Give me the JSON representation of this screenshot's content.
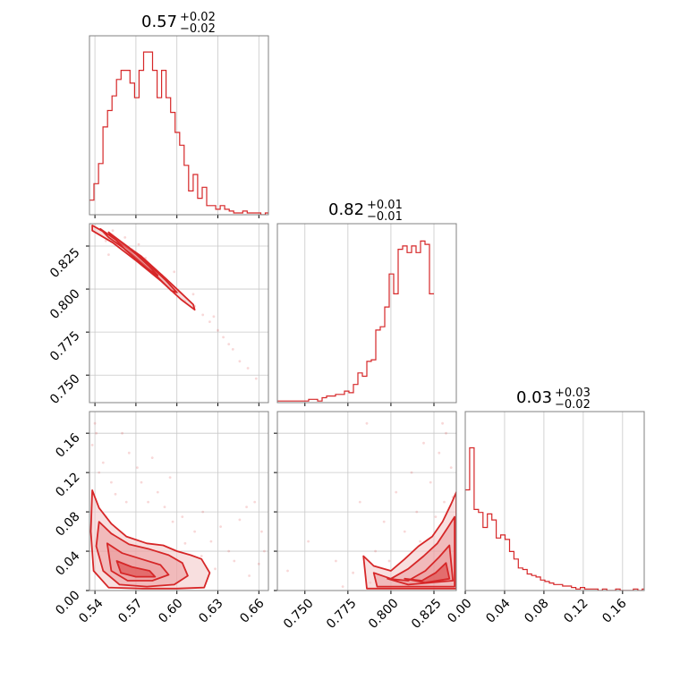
{
  "colors": {
    "accent": "#d62728",
    "grid": "#c8c8c8",
    "frame": "#808080",
    "fill_light": "#f3c4c4",
    "fill_mid": "#e98f90"
  },
  "chart_data": {
    "type": "corner",
    "panels": [
      {
        "id": "hist-p1",
        "type": "histogram",
        "title": {
          "median": "0.57",
          "plus": "+0.02",
          "minus": "−0.02"
        },
        "xlim": [
          0.536,
          0.667
        ],
        "xgrid": [
          0.54,
          0.57,
          0.6,
          0.63,
          0.66
        ],
        "bin_edges_start": 0.536,
        "bin_width": 0.0033,
        "counts": [
          8,
          17,
          28,
          48,
          57,
          65,
          74,
          79,
          79,
          72,
          64,
          79,
          89,
          89,
          79,
          64,
          79,
          64,
          56,
          45,
          38,
          27,
          13,
          22,
          9,
          15,
          5,
          5,
          3,
          5,
          3,
          2,
          1,
          1,
          2,
          1,
          1,
          1,
          0,
          1
        ],
        "ymax": 92
      },
      {
        "id": "hist-p2",
        "type": "histogram",
        "title": {
          "median": "0.82",
          "plus": "+0.01",
          "minus": "−0.01"
        },
        "xlim": [
          0.734,
          0.838
        ],
        "xgrid": [
          0.75,
          0.775,
          0.8,
          0.825
        ],
        "bin_edges_start": 0.734,
        "bin_width": 0.0026,
        "counts": [
          1,
          1,
          1,
          1,
          1,
          1,
          1,
          2,
          2,
          1,
          3,
          4,
          4,
          5,
          5,
          7,
          6,
          11,
          18,
          16,
          25,
          26,
          44,
          46,
          58,
          78,
          66,
          93,
          95,
          91,
          95,
          91,
          98,
          96,
          66
        ],
        "ymax": 102
      },
      {
        "id": "hist-p3",
        "type": "histogram",
        "title": {
          "median": "0.03",
          "plus": "+0.03",
          "minus": "−0.02"
        },
        "xlim": [
          0.0,
          0.182
        ],
        "xgrid": [
          0.0,
          0.04,
          0.08,
          0.12,
          0.16
        ],
        "bin_edges_start": 0.0,
        "bin_width": 0.0045,
        "counts": [
          67,
          95,
          54,
          52,
          42,
          51,
          47,
          35,
          37,
          34,
          26,
          21,
          15,
          14,
          11,
          10,
          9,
          7,
          6,
          5,
          4,
          4,
          3,
          3,
          2,
          1,
          2,
          1,
          1,
          1,
          0,
          1,
          0,
          0,
          1,
          0,
          0,
          0,
          1,
          0,
          1
        ],
        "ymax": 112
      },
      {
        "id": "scatter-p1-p2",
        "type": "contour_scatter",
        "xlim": [
          0.536,
          0.667
        ],
        "ylim": [
          0.734,
          0.838
        ],
        "xgrid": [
          0.54,
          0.57,
          0.6,
          0.63,
          0.66
        ],
        "ygrid": [
          0.75,
          0.775,
          0.8,
          0.825
        ],
        "points": [
          [
            0.548,
            0.828
          ],
          [
            0.556,
            0.826
          ],
          [
            0.562,
            0.83
          ],
          [
            0.567,
            0.823
          ],
          [
            0.571,
            0.818
          ],
          [
            0.577,
            0.818
          ],
          [
            0.583,
            0.812
          ],
          [
            0.589,
            0.808
          ],
          [
            0.595,
            0.802
          ],
          [
            0.601,
            0.798
          ],
          [
            0.606,
            0.793
          ],
          [
            0.613,
            0.79
          ],
          [
            0.619,
            0.785
          ],
          [
            0.624,
            0.781
          ],
          [
            0.63,
            0.776
          ],
          [
            0.634,
            0.772
          ],
          [
            0.641,
            0.765
          ],
          [
            0.646,
            0.758
          ],
          [
            0.652,
            0.754
          ],
          [
            0.658,
            0.748
          ],
          [
            0.553,
            0.834
          ],
          [
            0.55,
            0.82
          ],
          [
            0.572,
            0.826
          ],
          [
            0.598,
            0.81
          ],
          [
            0.612,
            0.797
          ],
          [
            0.627,
            0.784
          ],
          [
            0.638,
            0.768
          ]
        ],
        "contours": [
          [
            [
              0.538,
              0.837
            ],
            [
              0.556,
              0.829
            ],
            [
              0.574,
              0.819
            ],
            [
              0.592,
              0.806
            ],
            [
              0.604,
              0.797
            ],
            [
              0.612,
              0.791
            ],
            [
              0.613,
              0.788
            ],
            [
              0.603,
              0.794
            ],
            [
              0.588,
              0.805
            ],
            [
              0.571,
              0.816
            ],
            [
              0.553,
              0.827
            ],
            [
              0.538,
              0.834
            ]
          ],
          [
            [
              0.544,
              0.835
            ],
            [
              0.56,
              0.826
            ],
            [
              0.576,
              0.817
            ],
            [
              0.592,
              0.805
            ],
            [
              0.6,
              0.798
            ],
            [
              0.596,
              0.799
            ],
            [
              0.582,
              0.81
            ],
            [
              0.566,
              0.821
            ],
            [
              0.55,
              0.83
            ]
          ],
          [
            [
              0.55,
              0.833
            ],
            [
              0.565,
              0.824
            ],
            [
              0.58,
              0.813
            ],
            [
              0.586,
              0.808
            ],
            [
              0.578,
              0.812
            ],
            [
              0.562,
              0.823
            ]
          ]
        ]
      },
      {
        "id": "scatter-p1-p3",
        "type": "contour_scatter",
        "xlim": [
          0.536,
          0.667
        ],
        "ylim": [
          0.0,
          0.182
        ],
        "xgrid": [
          0.54,
          0.57,
          0.6,
          0.63,
          0.66
        ],
        "ygrid": [
          0.0,
          0.04,
          0.08,
          0.12,
          0.16
        ],
        "points": [
          [
            0.54,
            0.17
          ],
          [
            0.546,
            0.13
          ],
          [
            0.543,
            0.12
          ],
          [
            0.552,
            0.11
          ],
          [
            0.56,
            0.16
          ],
          [
            0.565,
            0.14
          ],
          [
            0.571,
            0.125
          ],
          [
            0.579,
            0.09
          ],
          [
            0.586,
            0.1
          ],
          [
            0.591,
            0.085
          ],
          [
            0.597,
            0.07
          ],
          [
            0.604,
            0.075
          ],
          [
            0.613,
            0.06
          ],
          [
            0.619,
            0.08
          ],
          [
            0.625,
            0.05
          ],
          [
            0.632,
            0.065
          ],
          [
            0.638,
            0.04
          ],
          [
            0.646,
            0.072
          ],
          [
            0.651,
            0.085
          ],
          [
            0.657,
            0.09
          ],
          [
            0.662,
            0.06
          ],
          [
            0.538,
            0.148
          ],
          [
            0.541,
            0.16
          ],
          [
            0.555,
            0.098
          ],
          [
            0.574,
            0.11
          ],
          [
            0.582,
            0.135
          ],
          [
            0.595,
            0.115
          ],
          [
            0.606,
            0.048
          ],
          [
            0.618,
            0.035
          ],
          [
            0.628,
            0.022
          ],
          [
            0.642,
            0.03
          ],
          [
            0.653,
            0.015
          ],
          [
            0.66,
            0.027
          ],
          [
            0.664,
            0.04
          ],
          [
            0.548,
            0.075
          ],
          [
            0.563,
            0.09
          ]
        ],
        "contours": [
          [
            [
              0.538,
              0.102
            ],
            [
              0.543,
              0.084
            ],
            [
              0.552,
              0.068
            ],
            [
              0.563,
              0.055
            ],
            [
              0.578,
              0.048
            ],
            [
              0.59,
              0.046
            ],
            [
              0.6,
              0.04
            ],
            [
              0.61,
              0.036
            ],
            [
              0.618,
              0.032
            ],
            [
              0.624,
              0.018
            ],
            [
              0.62,
              0.003
            ],
            [
              0.6,
              0.002
            ],
            [
              0.575,
              0.002
            ],
            [
              0.55,
              0.003
            ],
            [
              0.539,
              0.02
            ],
            [
              0.537,
              0.06
            ]
          ],
          [
            [
              0.543,
              0.07
            ],
            [
              0.552,
              0.058
            ],
            [
              0.565,
              0.047
            ],
            [
              0.58,
              0.042
            ],
            [
              0.594,
              0.036
            ],
            [
              0.604,
              0.028
            ],
            [
              0.608,
              0.015
            ],
            [
              0.598,
              0.006
            ],
            [
              0.578,
              0.004
            ],
            [
              0.558,
              0.006
            ],
            [
              0.546,
              0.02
            ],
            [
              0.541,
              0.045
            ]
          ],
          [
            [
              0.549,
              0.048
            ],
            [
              0.56,
              0.038
            ],
            [
              0.574,
              0.032
            ],
            [
              0.588,
              0.026
            ],
            [
              0.594,
              0.016
            ],
            [
              0.582,
              0.01
            ],
            [
              0.564,
              0.01
            ],
            [
              0.552,
              0.02
            ]
          ],
          [
            [
              0.556,
              0.03
            ],
            [
              0.567,
              0.024
            ],
            [
              0.58,
              0.02
            ],
            [
              0.584,
              0.014
            ],
            [
              0.57,
              0.014
            ],
            [
              0.559,
              0.018
            ]
          ]
        ]
      },
      {
        "id": "scatter-p2-p3",
        "type": "contour_scatter",
        "xlim": [
          0.734,
          0.838
        ],
        "ylim": [
          0.0,
          0.182
        ],
        "xgrid": [
          0.75,
          0.775,
          0.8,
          0.825
        ],
        "ygrid": [
          0.0,
          0.04,
          0.08,
          0.12,
          0.16
        ],
        "points": [
          [
            0.74,
            0.02
          ],
          [
            0.752,
            0.05
          ],
          [
            0.768,
            0.03
          ],
          [
            0.778,
            0.018
          ],
          [
            0.782,
            0.09
          ],
          [
            0.786,
            0.17
          ],
          [
            0.791,
            0.04
          ],
          [
            0.796,
            0.07
          ],
          [
            0.803,
            0.1
          ],
          [
            0.808,
            0.06
          ],
          [
            0.812,
            0.12
          ],
          [
            0.815,
            0.08
          ],
          [
            0.819,
            0.15
          ],
          [
            0.823,
            0.11
          ],
          [
            0.828,
            0.14
          ],
          [
            0.832,
            0.16
          ],
          [
            0.835,
            0.125
          ],
          [
            0.836,
            0.095
          ],
          [
            0.831,
            0.09
          ],
          [
            0.826,
            0.075
          ],
          [
            0.817,
            0.05
          ],
          [
            0.799,
            0.03
          ],
          [
            0.788,
            0.008
          ],
          [
            0.772,
            0.004
          ],
          [
            0.83,
            0.17
          ]
        ],
        "contours": [
          [
            [
              0.784,
              0.035
            ],
            [
              0.79,
              0.025
            ],
            [
              0.8,
              0.02
            ],
            [
              0.808,
              0.032
            ],
            [
              0.816,
              0.045
            ],
            [
              0.824,
              0.055
            ],
            [
              0.83,
              0.07
            ],
            [
              0.835,
              0.088
            ],
            [
              0.838,
              0.1
            ],
            [
              0.838,
              0.002
            ],
            [
              0.786,
              0.002
            ]
          ],
          [
            [
              0.79,
              0.018
            ],
            [
              0.8,
              0.012
            ],
            [
              0.81,
              0.022
            ],
            [
              0.819,
              0.035
            ],
            [
              0.827,
              0.048
            ],
            [
              0.833,
              0.064
            ],
            [
              0.837,
              0.075
            ],
            [
              0.837,
              0.004
            ],
            [
              0.792,
              0.004
            ]
          ],
          [
            [
              0.798,
              0.012
            ],
            [
              0.81,
              0.01
            ],
            [
              0.82,
              0.02
            ],
            [
              0.828,
              0.034
            ],
            [
              0.834,
              0.046
            ],
            [
              0.836,
              0.01
            ],
            [
              0.81,
              0.006
            ]
          ],
          [
            [
              0.808,
              0.012
            ],
            [
              0.818,
              0.01
            ],
            [
              0.826,
              0.018
            ],
            [
              0.832,
              0.028
            ],
            [
              0.834,
              0.012
            ],
            [
              0.82,
              0.008
            ]
          ]
        ]
      }
    ]
  },
  "axis_labels": {
    "row2_y": [
      "0.825",
      "0.800",
      "0.775",
      "0.750"
    ],
    "row3_y": [
      "0.16",
      "0.12",
      "0.08",
      "0.04",
      "0.00"
    ],
    "col1_x": [
      "0.54",
      "0.57",
      "0.60",
      "0.63",
      "0.66"
    ],
    "col2_x": [
      "0.750",
      "0.775",
      "0.800",
      "0.825"
    ],
    "col3_x": [
      "0.00",
      "0.04",
      "0.08",
      "0.12",
      "0.16"
    ]
  }
}
